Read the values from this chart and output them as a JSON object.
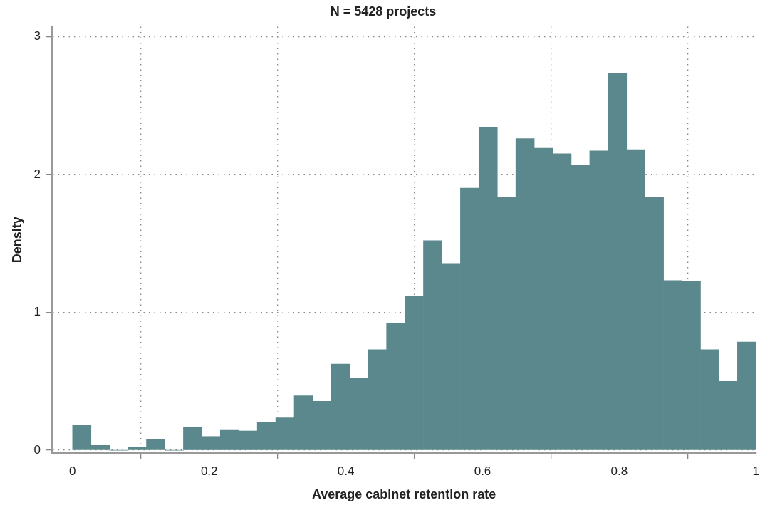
{
  "chart_data": {
    "type": "histogram",
    "title": "N = 5428 projects",
    "xlabel": "Average cabinet retention rate",
    "ylabel": "Density",
    "bins": [
      0,
      0.027,
      0.0541,
      0.0811,
      0.1081,
      0.1351,
      0.1622,
      0.1892,
      0.2162,
      0.2432,
      0.2703,
      0.2973,
      0.3243,
      0.3514,
      0.3784,
      0.4054,
      0.4324,
      0.4595,
      0.4865,
      0.5135,
      0.5405,
      0.5676,
      0.5946,
      0.6216,
      0.6486,
      0.6757,
      0.7027,
      0.7297,
      0.7568,
      0.7838,
      0.8108,
      0.8378,
      0.8649,
      0.8919,
      0.9189,
      0.9459,
      0.973,
      1
    ],
    "values": [
      0.18,
      0.035,
      0,
      0.02,
      0.08,
      0,
      0.165,
      0.1,
      0.15,
      0.14,
      0.205,
      0.235,
      0.395,
      0.355,
      0.625,
      0.52,
      0.73,
      0.92,
      1.12,
      1.52,
      1.355,
      1.9,
      2.34,
      1.835,
      2.26,
      2.19,
      2.15,
      2.065,
      2.17,
      2.735,
      2.18,
      1.835,
      1.23,
      1.225,
      0.73,
      0.5,
      0.785
    ],
    "color": "#5b888c",
    "xlim": [
      -0.03,
      1
    ],
    "xticks": [
      0,
      0.2,
      0.4,
      0.6,
      0.8,
      1
    ],
    "ylim": [
      -0.02,
      3.07
    ],
    "yticks": [
      0,
      1,
      2,
      3
    ],
    "grid": true,
    "legend": false
  }
}
